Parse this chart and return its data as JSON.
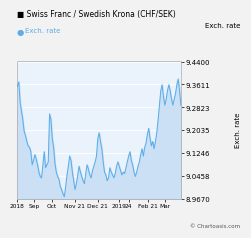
{
  "title": "■ Swiss Franc / Swedish Krona (CHF/SEK)",
  "legend_label": "Exch. rate",
  "ylabel": "Exch. rate",
  "yticks": [
    8.967,
    9.0458,
    9.1246,
    9.2035,
    9.2823,
    9.3611,
    9.44
  ],
  "ylim": [
    8.967,
    9.44
  ],
  "xtick_labels": [
    "2018",
    "Sep",
    "Oct",
    "Nov 21",
    "Dec 21",
    "2019",
    "24",
    "Feb 21",
    "Mar"
  ],
  "xtick_pos_frac": [
    0.0,
    0.1,
    0.21,
    0.35,
    0.49,
    0.62,
    0.68,
    0.8,
    0.9
  ],
  "line_color": "#5baee8",
  "fill_color": "#cce0f5",
  "bg_color": "#f2f2f2",
  "plot_bg_color": "#eaf2fb",
  "grid_color": "#ffffff",
  "copyright": "© Chartoasis.com",
  "y_values": [
    9.355,
    9.37,
    9.3,
    9.27,
    9.24,
    9.2,
    9.185,
    9.165,
    9.15,
    9.145,
    9.13,
    9.085,
    9.1,
    9.12,
    9.105,
    9.085,
    9.06,
    9.045,
    9.04,
    9.085,
    9.13,
    9.075,
    9.085,
    9.095,
    9.26,
    9.24,
    9.175,
    9.145,
    9.09,
    9.06,
    9.045,
    9.035,
    9.01,
    9.0,
    8.985,
    8.975,
    9.01,
    9.05,
    9.08,
    9.115,
    9.1,
    9.06,
    9.03,
    9.0,
    9.02,
    9.05,
    9.08,
    9.06,
    9.045,
    9.03,
    9.02,
    9.055,
    9.085,
    9.07,
    9.05,
    9.04,
    9.065,
    9.08,
    9.095,
    9.115,
    9.175,
    9.195,
    9.165,
    9.14,
    9.095,
    9.06,
    9.05,
    9.03,
    9.04,
    9.075,
    9.06,
    9.05,
    9.04,
    9.055,
    9.08,
    9.095,
    9.08,
    9.065,
    9.05,
    9.06,
    9.055,
    9.075,
    9.095,
    9.115,
    9.13,
    9.1,
    9.085,
    9.06,
    9.045,
    9.06,
    9.08,
    9.095,
    9.12,
    9.14,
    9.115,
    9.145,
    9.16,
    9.19,
    9.21,
    9.175,
    9.15,
    9.165,
    9.14,
    9.165,
    9.195,
    9.24,
    9.29,
    9.34,
    9.36,
    9.32,
    9.29,
    9.31,
    9.34,
    9.36,
    9.34,
    9.31,
    9.29,
    9.31,
    9.33,
    9.36,
    9.38,
    9.34,
    9.29
  ]
}
